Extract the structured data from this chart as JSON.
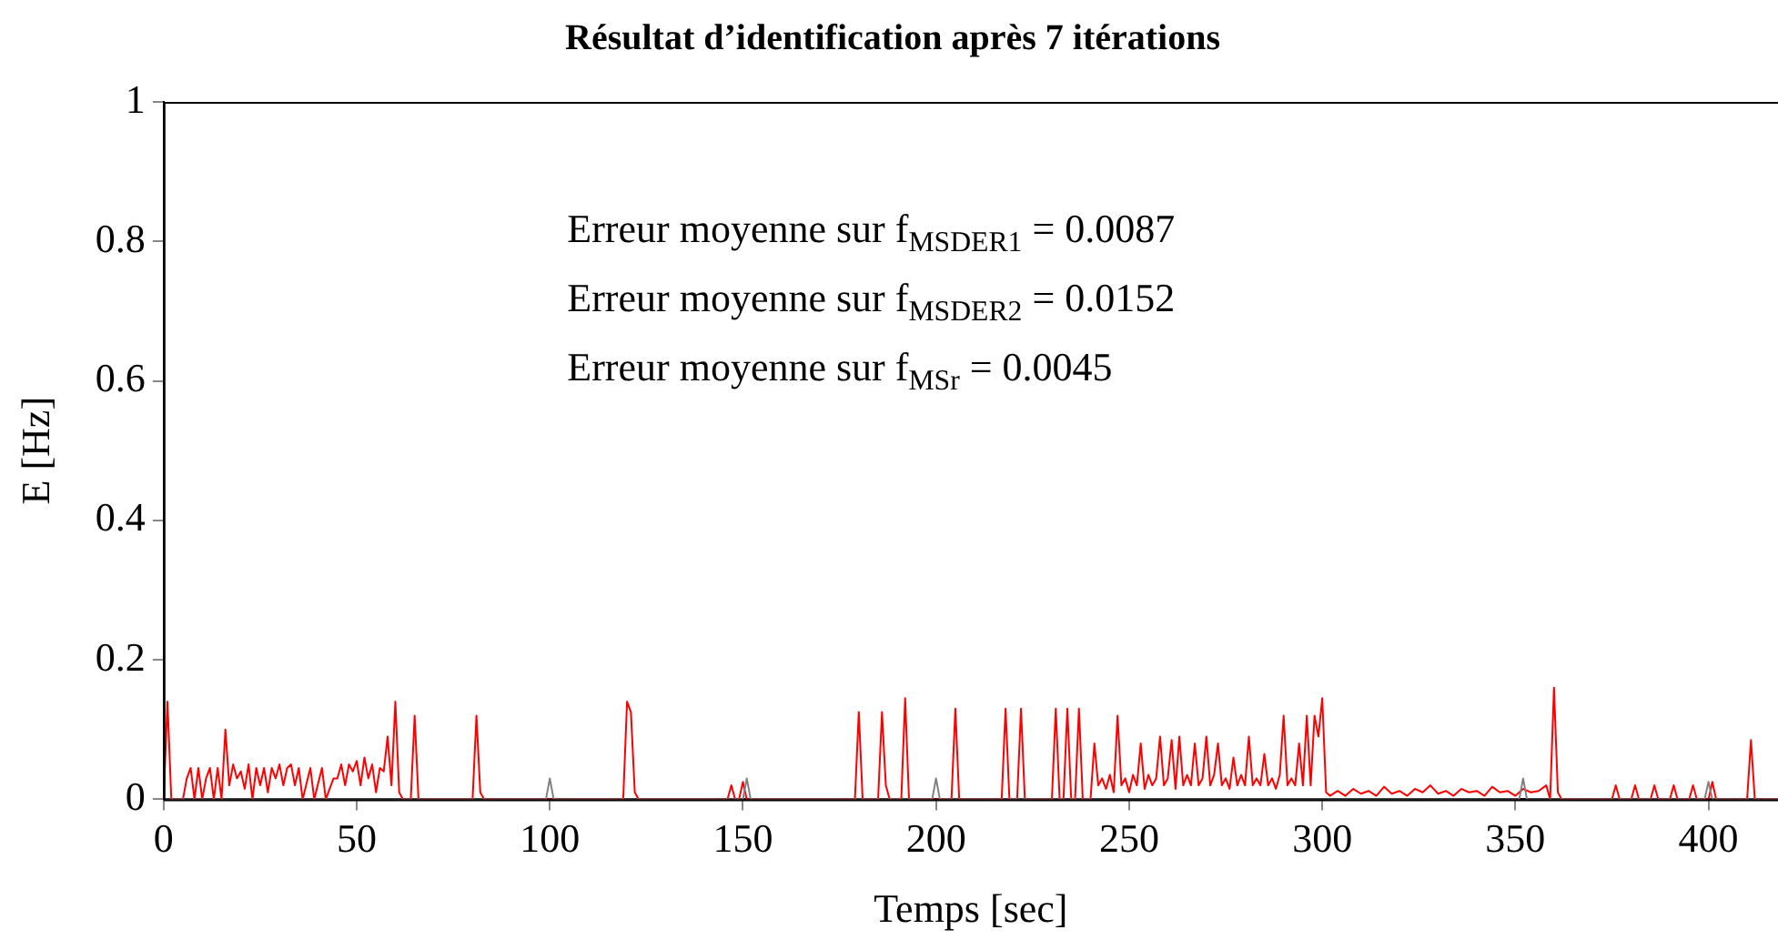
{
  "chart_data": {
    "type": "line",
    "title": "Résultat d’identification après 7 itérations",
    "xlabel": "Temps [sec]",
    "ylabel": "E [Hz]",
    "xlim": [
      0,
      418
    ],
    "ylim": [
      0,
      1
    ],
    "xticks": [
      0,
      50,
      100,
      150,
      200,
      250,
      300,
      350,
      400
    ],
    "yticks": [
      0,
      0.2,
      0.4,
      0.6,
      0.8,
      1
    ],
    "grid": false,
    "legend": false,
    "marker": "none",
    "line_style": "solid",
    "annotations": [
      "Erreur moyenne sur f$_{MS}$$_{DER1}$ = 0.0087",
      "Erreur moyenne sur f$_{MS}$$_{DER2}$ = 0.0152",
      "Erreur moyenne sur f$_{MS}$$_{r}$ = 0.0045"
    ],
    "series": [
      {
        "color": "#808080",
        "x": [
          0,
          99,
          100,
          101,
          150,
          151,
          152,
          199,
          200,
          201,
          351,
          352,
          353,
          399,
          400,
          401,
          418
        ],
        "values": [
          0,
          0,
          0.03,
          0,
          0,
          0.03,
          0,
          0,
          0.03,
          0,
          0,
          0.03,
          0,
          0,
          0.025,
          0,
          0
        ]
      },
      {
        "color": "#ff0000",
        "x": [
          0,
          1,
          2,
          5,
          6,
          7,
          8,
          9,
          10,
          11,
          12,
          13,
          14,
          15,
          16,
          17,
          18,
          19,
          20,
          21,
          22,
          23,
          24,
          25,
          26,
          27,
          28,
          29,
          30,
          31,
          32,
          33,
          34,
          35,
          36,
          38,
          39,
          41,
          42,
          44,
          45,
          46,
          47,
          48,
          49,
          50,
          51,
          52,
          53,
          54,
          55,
          56,
          57,
          58,
          59,
          60,
          61,
          62,
          64,
          65,
          66,
          80,
          81,
          82,
          83,
          119,
          120,
          121,
          122,
          123,
          146,
          147,
          148,
          149,
          150,
          151,
          179,
          180,
          181,
          185,
          186,
          187,
          188,
          191,
          192,
          193,
          204,
          205,
          206,
          217,
          218,
          219,
          221,
          222,
          223,
          230,
          231,
          232,
          233,
          234,
          235,
          236,
          237,
          238,
          240,
          241,
          242,
          243,
          244,
          245,
          246,
          247,
          248,
          249,
          250,
          251,
          252,
          253,
          254,
          255,
          256,
          257,
          258,
          259,
          260,
          261,
          262,
          263,
          264,
          265,
          266,
          267,
          268,
          269,
          270,
          271,
          272,
          273,
          274,
          275,
          276,
          277,
          278,
          279,
          280,
          281,
          282,
          283,
          284,
          285,
          286,
          287,
          288,
          289,
          290,
          291,
          292,
          293,
          294,
          295,
          296,
          297,
          298,
          299,
          300,
          301,
          302,
          304,
          306,
          308,
          310,
          312,
          314,
          316,
          318,
          320,
          322,
          324,
          326,
          328,
          330,
          332,
          334,
          336,
          338,
          340,
          342,
          344,
          346,
          348,
          350,
          352,
          354,
          356,
          358,
          359,
          360,
          361,
          362,
          375,
          376,
          377,
          380,
          381,
          382,
          385,
          386,
          387,
          390,
          391,
          392,
          395,
          396,
          397,
          400,
          401,
          402,
          410,
          411,
          412,
          418
        ],
        "values": [
          0,
          0.14,
          0,
          0,
          0.03,
          0.045,
          0,
          0.045,
          0,
          0.03,
          0.045,
          0,
          0.045,
          0,
          0.1,
          0.02,
          0.05,
          0.03,
          0.04,
          0.015,
          0.05,
          0,
          0.045,
          0.02,
          0.045,
          0.01,
          0.045,
          0.03,
          0.05,
          0.02,
          0.045,
          0.05,
          0.02,
          0.045,
          0,
          0.045,
          0,
          0.045,
          0,
          0.03,
          0.03,
          0.05,
          0.02,
          0.05,
          0.04,
          0.055,
          0.02,
          0.06,
          0.03,
          0.05,
          0.01,
          0.045,
          0.04,
          0.09,
          0.02,
          0.14,
          0.01,
          0,
          0,
          0.12,
          0,
          0,
          0.12,
          0.01,
          0,
          0,
          0.14,
          0.125,
          0.01,
          0,
          0,
          0.02,
          0,
          0,
          0.025,
          0,
          0,
          0.125,
          0,
          0,
          0.125,
          0.02,
          0,
          0,
          0.145,
          0,
          0,
          0.13,
          0,
          0,
          0.13,
          0,
          0,
          0.13,
          0,
          0,
          0.13,
          0,
          0,
          0.13,
          0,
          0,
          0.13,
          0,
          0,
          0.08,
          0.02,
          0.03,
          0.015,
          0.035,
          0.01,
          0.12,
          0.02,
          0.03,
          0.01,
          0.035,
          0.02,
          0.08,
          0.015,
          0.035,
          0.02,
          0.03,
          0.09,
          0.02,
          0.03,
          0.085,
          0.015,
          0.09,
          0.02,
          0.035,
          0.02,
          0.08,
          0.02,
          0.03,
          0.09,
          0.02,
          0.035,
          0.08,
          0.02,
          0.03,
          0.015,
          0.06,
          0.02,
          0.035,
          0.02,
          0.09,
          0.02,
          0.03,
          0.02,
          0.065,
          0.02,
          0.03,
          0.015,
          0.035,
          0.12,
          0.02,
          0.03,
          0.02,
          0.08,
          0.02,
          0.12,
          0.02,
          0.12,
          0.09,
          0.145,
          0.01,
          0.005,
          0.012,
          0.005,
          0.015,
          0.008,
          0.012,
          0.005,
          0.018,
          0.008,
          0.012,
          0.005,
          0.015,
          0.01,
          0.02,
          0.008,
          0.012,
          0.005,
          0.015,
          0.01,
          0.012,
          0.005,
          0.018,
          0.01,
          0.012,
          0.005,
          0.015,
          0.01,
          0.012,
          0.02,
          0,
          0.16,
          0.01,
          0,
          0,
          0.02,
          0,
          0,
          0.02,
          0,
          0,
          0.02,
          0,
          0,
          0.02,
          0,
          0,
          0.02,
          0,
          0,
          0.025,
          0,
          0,
          0.085,
          0,
          0
        ]
      }
    ]
  }
}
